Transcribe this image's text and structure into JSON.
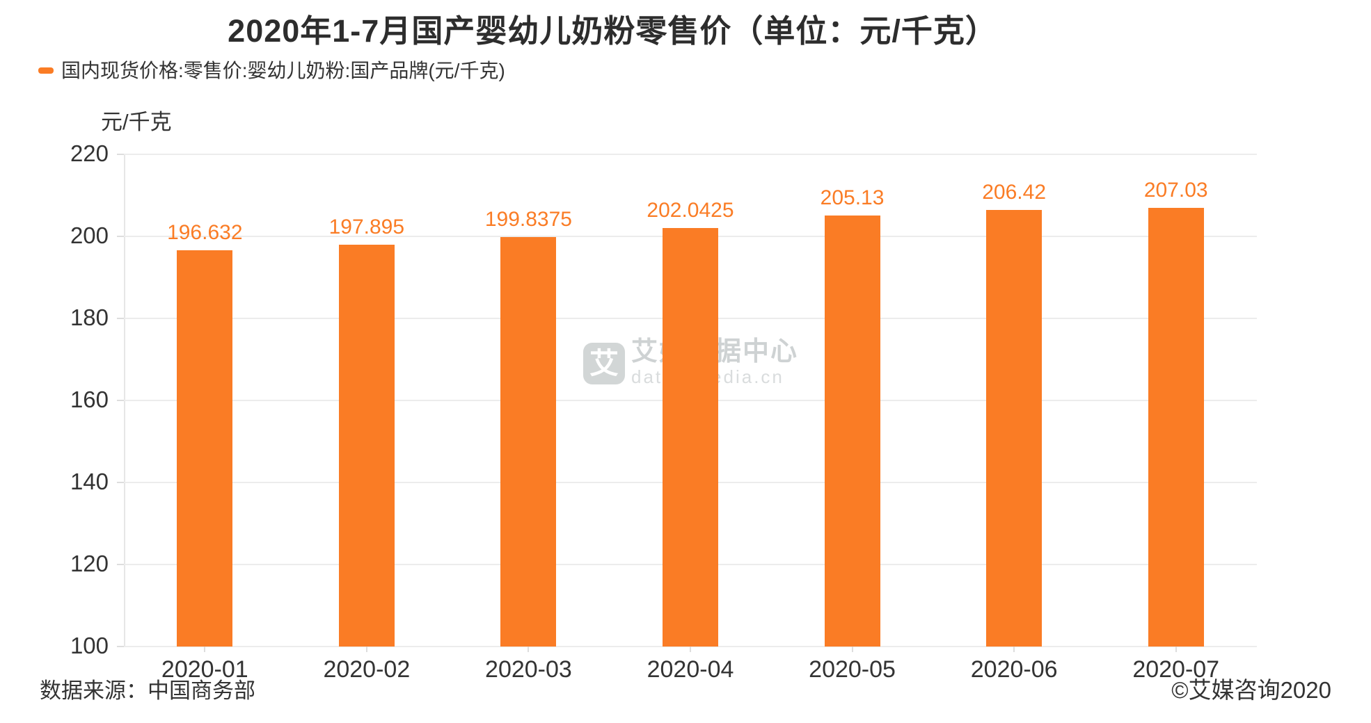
{
  "title": "2020年1-7月国产婴幼儿奶粉零售价（单位：元/千克）",
  "legend": {
    "label": "国内现货价格:零售价:婴幼儿奶粉:国产品牌(元/千克)"
  },
  "watermark": {
    "logo_char": "艾",
    "name": "艾媒数据中心",
    "domain": "data.iimedia.cn"
  },
  "footer": {
    "source": "数据来源：中国商务部",
    "copyright": "©艾媒咨询2020"
  },
  "colors": {
    "bar": "#fa7c25",
    "value_label": "#fa7c25",
    "legend_swatch": "#fa7c25",
    "grid": "#ececec",
    "text": "#333333",
    "watermark_gray": "#d2d6d6"
  },
  "chart_data": {
    "type": "bar",
    "categories": [
      "2020-01",
      "2020-02",
      "2020-03",
      "2020-04",
      "2020-05",
      "2020-06",
      "2020-07"
    ],
    "values": [
      196.632,
      197.895,
      199.8375,
      202.0425,
      205.13,
      206.42,
      207.03
    ],
    "series": [
      {
        "name": "国内现货价格:零售价:婴幼儿奶粉:国产品牌(元/千克)",
        "values": [
          196.632,
          197.895,
          199.8375,
          202.0425,
          205.13,
          206.42,
          207.03
        ]
      }
    ],
    "title": "2020年1-7月国产婴幼儿奶粉零售价（单位：元/千克）",
    "xlabel": "",
    "ylabel": "元/千克",
    "ylim": [
      100,
      220
    ],
    "yticks": [
      220,
      200,
      180,
      160,
      140,
      120,
      100
    ],
    "grid": true,
    "legend_position": "top-left",
    "value_labels_shown": true
  }
}
